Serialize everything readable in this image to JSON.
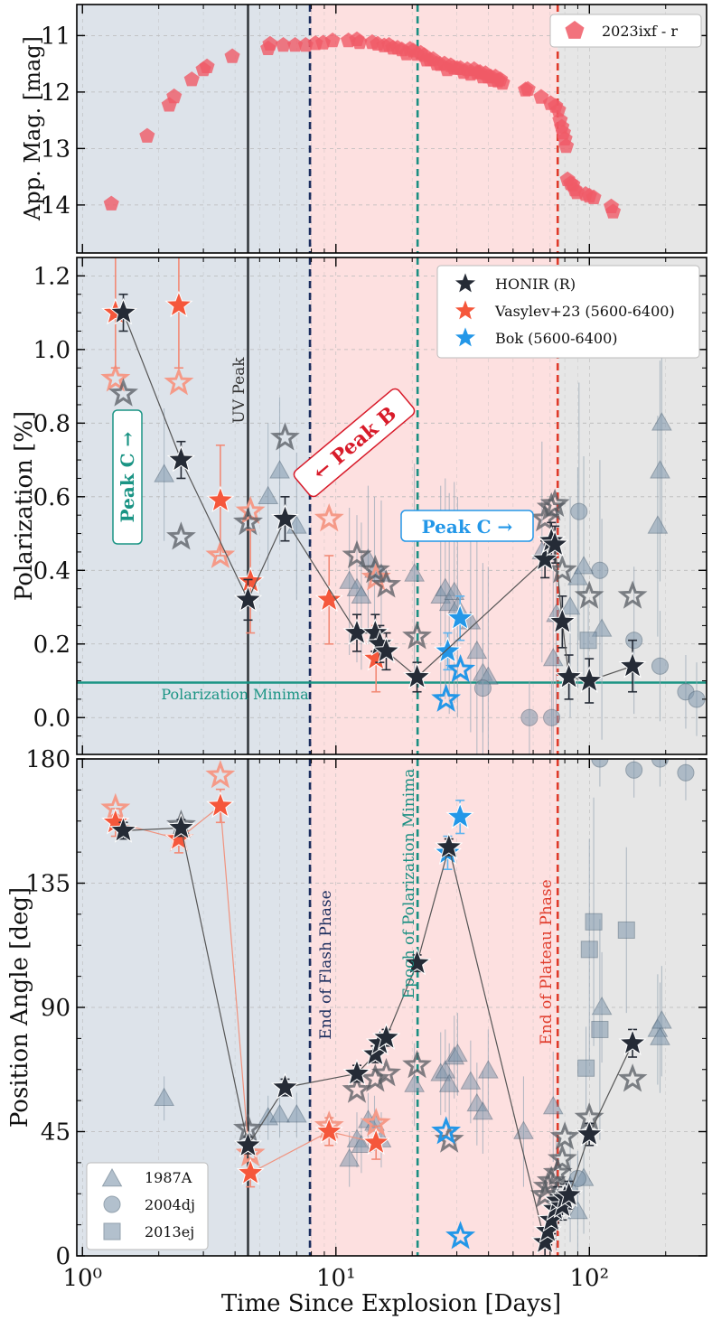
{
  "chart_data": {
    "type": "scatter",
    "x_axis": {
      "label": "Time Since Explosion [Days]",
      "scale": "log",
      "range": [
        0.95,
        290
      ],
      "major_ticks": [
        1,
        10,
        100
      ],
      "major_tick_labels": [
        "10⁰",
        "10¹",
        "10²"
      ]
    },
    "phases": [
      {
        "label": "",
        "from": 0.95,
        "to": 7.9,
        "color": "#dde3ea"
      },
      {
        "label": "",
        "from": 7.9,
        "to": 75,
        "color": "#fde0e0"
      },
      {
        "label": "",
        "from": 75,
        "to": 290,
        "color": "#e6e6e6"
      }
    ],
    "vertical_lines": [
      {
        "name": "uv-peak",
        "x": 4.5,
        "color": "#2e3338",
        "style": "solid",
        "label": "UV Peak"
      },
      {
        "name": "end-flash",
        "x": 7.9,
        "color": "#1b2d5e",
        "style": "dashed",
        "label": "End of Flash Phase"
      },
      {
        "name": "epoch-min",
        "x": 21,
        "color": "#1a8f82",
        "style": "dashed",
        "label": "Epoch of Polarization Minima"
      },
      {
        "name": "end-plateau",
        "x": 75,
        "color": "#e03a2a",
        "style": "dashed",
        "label": "End of Plateau Phase"
      }
    ],
    "colors": {
      "honir": "#252b36",
      "vasylev": "#f5573b",
      "bok": "#2397e8",
      "comparison": "#7f97ad",
      "photometry": "#f05a66",
      "minima": "#1a9484"
    },
    "panels": [
      {
        "name": "photometry",
        "ylabel": "App. Mag. [mag]",
        "ylim": [
          10.45,
          14.85
        ],
        "inverted": true,
        "yticks": [
          11,
          12,
          13,
          14
        ],
        "legend": [
          "2023ixf - r"
        ],
        "series": [
          {
            "name": "2023ixf - r",
            "marker": "pentagon",
            "x": [
              1.3,
              1.8,
              2.2,
              2.3,
              2.7,
              3.0,
              3.1,
              3.9,
              5.4,
              5.5,
              6.2,
              6.9,
              7.6,
              8.3,
              8.9,
              9.7,
              11.2,
              12.1,
              12.4,
              13.9,
              14.6,
              15.5,
              16.2,
              16.8,
              17.5,
              18.2,
              19.0,
              19.6,
              20.2,
              20.9,
              21.6,
              22.3,
              22.8,
              23.5,
              24.2,
              25.0,
              25.8,
              26.8,
              27.5,
              28.4,
              29.2,
              30.1,
              31.0,
              31.9,
              33.0,
              34.0,
              35.1,
              36.1,
              37.0,
              38.0,
              38.9,
              39.8,
              40.8,
              41.7,
              42.6,
              43.5,
              44.5,
              45.4,
              56.0,
              57.2,
              64.5,
              70.3,
              73.5,
              75.5,
              76.6,
              77.8,
              78.9,
              80.0,
              81.0,
              82.0,
              84.3,
              85.9,
              87.6,
              89.3,
              96.6,
              100.0,
              104.0,
              122.0,
              124.0
            ],
            "y": [
              13.98,
              12.78,
              12.23,
              12.08,
              11.78,
              11.6,
              11.55,
              11.37,
              11.23,
              11.15,
              11.17,
              11.17,
              11.17,
              11.14,
              11.13,
              11.09,
              11.09,
              11.07,
              11.12,
              11.12,
              11.15,
              11.18,
              11.17,
              11.22,
              11.22,
              11.25,
              11.32,
              11.24,
              11.27,
              11.33,
              11.31,
              11.35,
              11.43,
              11.43,
              11.42,
              11.5,
              11.51,
              11.5,
              11.6,
              11.53,
              11.57,
              11.58,
              11.58,
              11.65,
              11.6,
              11.68,
              11.6,
              11.66,
              11.65,
              11.73,
              11.67,
              11.73,
              11.73,
              11.79,
              11.73,
              11.8,
              11.78,
              11.84,
              11.96,
              11.95,
              12.09,
              12.2,
              12.25,
              12.32,
              12.5,
              12.62,
              12.72,
              12.83,
              12.96,
              13.55,
              13.62,
              13.64,
              13.73,
              13.78,
              13.81,
              13.84,
              13.87,
              14.03,
              14.12
            ]
          }
        ]
      },
      {
        "name": "polarization",
        "ylabel": "Polarization [%]",
        "ylim": [
          -0.1,
          1.25
        ],
        "yticks": [
          0.0,
          0.2,
          0.4,
          0.6,
          0.8,
          1.0,
          1.2
        ],
        "ytick_labels": [
          "0.0",
          "0.2",
          "0.4",
          "0.6",
          "0.8",
          "1.0",
          "1.2"
        ],
        "hline": {
          "y": 0.095,
          "label": "Polarization Minima"
        },
        "legend": [
          "HONIR (R)",
          "Vasylev+23 (5600-6400)",
          "Bok (5600-6400)"
        ],
        "annotations": [
          {
            "text": "← Peak B",
            "color": "#d81b2a"
          },
          {
            "text": "Peak C →",
            "color": "#1a9484"
          },
          {
            "text": "Peak C →",
            "color": "#2397e8"
          },
          {
            "text": "UV Peak",
            "color": "#333333"
          }
        ],
        "series": [
          {
            "name": "HONIR (R)",
            "style": "filled",
            "connected": true,
            "x": [
              1.45,
              2.45,
              4.5,
              6.3,
              12.1,
              14.3,
              14.9,
              15.8,
              20.9,
              66.8,
              70.8,
              73.1,
              78.2,
              83.0,
              99.9,
              148.0
            ],
            "y": [
              1.1,
              0.7,
              0.32,
              0.54,
              0.23,
              0.23,
              0.2,
              0.18,
              0.11,
              0.43,
              0.48,
              0.47,
              0.26,
              0.11,
              0.1,
              0.14
            ],
            "err": [
              0.05,
              0.05,
              0.055,
              0.06,
              0.05,
              0.05,
              0.05,
              0.05,
              0.04,
              0.05,
              0.05,
              0.05,
              0.07,
              0.06,
              0.06,
              0.07
            ]
          },
          {
            "name": "HONIR (R) unbinned",
            "style": "hollow",
            "x": [
              1.45,
              2.45,
              4.5,
              6.3,
              12.1,
              14.3,
              15.8,
              20.9,
              66.8,
              70.8,
              73.1,
              78.2,
              99.9,
              148.0
            ],
            "y": [
              0.88,
              0.49,
              0.53,
              0.76,
              0.44,
              0.4,
              0.36,
              0.22,
              0.54,
              0.57,
              0.58,
              0.4,
              0.33,
              0.33
            ]
          },
          {
            "name": "Vasylev+23 (5600-6400)",
            "style": "filled",
            "connected": false,
            "x": [
              1.35,
              2.4,
              3.5,
              4.6,
              9.4,
              14.4
            ],
            "y": [
              1.1,
              1.12,
              0.59,
              0.37,
              0.32,
              0.16
            ],
            "err": [
              0.15,
              0.17,
              0.15,
              0.14,
              0.12,
              0.09
            ]
          },
          {
            "name": "Vasylev+23 unbinned",
            "style": "hollow",
            "x": [
              1.35,
              2.4,
              3.5,
              4.6,
              9.4,
              14.4
            ],
            "y": [
              0.92,
              0.91,
              0.44,
              0.56,
              0.54,
              0.38
            ]
          },
          {
            "name": "Bok (5600-6400)",
            "style": "filled",
            "x": [
              27.6,
              30.9
            ],
            "y": [
              0.18,
              0.27
            ],
            "err": [
              0.05,
              0.06
            ]
          },
          {
            "name": "Bok unbinned",
            "style": "hollow",
            "x": [
              27.2,
              31.0
            ],
            "y": [
              0.05,
              0.13
            ]
          },
          {
            "name": "1987A",
            "marker": "triangle",
            "x": [
              2.1,
              5.4,
              6.0,
              7.0,
              11.3,
              12.1,
              12.6,
              13.4,
              14.2,
              15.1,
              20.4,
              25.9,
              27.0,
              28.0,
              29.3,
              30.2,
              34.0,
              36.0,
              38.0,
              39.9,
              65.0,
              72.0,
              74.0,
              84.0,
              90.0,
              95.0,
              112.0,
              186.0,
              190.0,
              193.0
            ],
            "y": [
              0.66,
              0.6,
              0.67,
              0.52,
              0.37,
              0.35,
              0.33,
              0.43,
              0.4,
              0.39,
              0.39,
              0.33,
              0.35,
              0.31,
              0.34,
              0.3,
              0.26,
              0.18,
              0.12,
              0.11,
              0.45,
              0.16,
              0.28,
              0.3,
              0.38,
              0.41,
              0.24,
              0.52,
              0.67,
              0.8
            ],
            "err": [
              0.18,
              0.2,
              0.2,
              0.2,
              0.2,
              0.2,
              0.2,
              0.2,
              0.2,
              0.2,
              0.3,
              0.3,
              0.3,
              0.3,
              0.3,
              0.3,
              0.3,
              0.3,
              0.3,
              0.3,
              0.3,
              0.3,
              0.3,
              0.3,
              0.3,
              0.3,
              0.3,
              0.3,
              0.3,
              0.3
            ]
          },
          {
            "name": "2004dj",
            "marker": "circle",
            "x": [
              38.0,
              58.0,
              71.0,
              91.0,
              110.0,
              150.0,
              190.0,
              240.0,
              265.0
            ],
            "y": [
              0.08,
              0.0,
              0.0,
              0.56,
              0.4,
              0.21,
              0.14,
              0.07,
              0.05
            ],
            "err": [
              0.12,
              0.1,
              0.1,
              0.35,
              0.3,
              0.2,
              0.15,
              0.1,
              0.1
            ]
          },
          {
            "name": "2013ej",
            "marker": "square",
            "x": [
              99.0
            ],
            "y": [
              0.21
            ],
            "err": [
              0.1
            ]
          }
        ]
      },
      {
        "name": "position_angle",
        "ylabel": "Position Angle [deg]",
        "ylim": [
          0,
          180
        ],
        "yticks": [
          0,
          45,
          90,
          135,
          180
        ],
        "ytick_labels": [
          "0",
          "45",
          "90",
          "135",
          "180"
        ],
        "legend": [
          "1987A",
          "2004dj",
          "2013ej"
        ],
        "series": [
          {
            "name": "HONIR (R)",
            "style": "filled",
            "connected": true,
            "x": [
              1.45,
              2.45,
              4.5,
              6.3,
              12.1,
              14.3,
              14.9,
              15.8,
              20.9,
              27.9,
              66.8,
              68.5,
              70.8,
              73.1,
              75.0,
              78.2,
              80.0,
              83.0,
              99.9,
              148.0
            ],
            "y": [
              154,
              155,
              40,
              61,
              66,
              73,
              77,
              79,
              106,
              148,
              5,
              9,
              13,
              17,
              20,
              18,
              21,
              22,
              44,
              77
            ],
            "err": [
              3,
              3,
              3,
              3,
              3,
              3,
              3,
              3,
              3,
              3,
              5,
              5,
              5,
              5,
              5,
              5,
              5,
              5,
              4,
              5
            ]
          },
          {
            "name": "HONIR (R) unbinned",
            "style": "hollow",
            "x": [
              2.45,
              4.5,
              12.1,
              14.3,
              15.8,
              20.9,
              28.0,
              66.8,
              68.5,
              70.8,
              75.0,
              78.2,
              80.0,
              99.9,
              148.0
            ],
            "y": [
              156,
              46,
              60,
              64,
              66,
              69,
              42,
              22,
              25,
              27,
              30,
              35,
              43,
              50,
              64
            ]
          },
          {
            "name": "Vasylev+23 (5600-6400)",
            "style": "filled",
            "connected": true,
            "x": [
              1.35,
              2.4,
              3.5,
              4.6,
              9.4,
              14.4
            ],
            "y": [
              157,
              151,
              163,
              30,
              45,
              41
            ],
            "err": [
              5,
              5,
              6,
              5,
              5,
              6
            ]
          },
          {
            "name": "Vasylev+23 unbinned",
            "style": "hollow",
            "x": [
              1.35,
              2.4,
              3.5,
              4.6,
              9.4,
              14.4
            ],
            "y": [
              162,
              151,
              174,
              37,
              47,
              48
            ]
          },
          {
            "name": "Bok (5600-6400)",
            "style": "filled",
            "x": [
              27.6,
              30.9
            ],
            "y": [
              146,
              159
            ],
            "err": [
              6,
              6
            ]
          },
          {
            "name": "Bok unbinned",
            "style": "hollow",
            "x": [
              27.2,
              31.0
            ],
            "y": [
              45,
              7
            ]
          },
          {
            "name": "1987A",
            "marker": "triangle",
            "x": [
              2.1,
              5.4,
              6.0,
              7.0,
              11.3,
              12.1,
              12.6,
              13.4,
              14.2,
              15.1,
              20.4,
              25.9,
              27.0,
              28.0,
              29.3,
              30.2,
              34.0,
              36.0,
              38.0,
              39.9,
              55.0,
              72.0,
              74.0,
              84.0,
              90.0,
              95.0,
              112.0,
              186.0,
              190.0,
              193.0
            ],
            "y": [
              57,
              50,
              51,
              51,
              35,
              42,
              40,
              49,
              48,
              42,
              62,
              66,
              67,
              62,
              72,
              73,
              63,
              55,
              52,
              67,
              45,
              54,
              22,
              25,
              16,
              28,
              90,
              82,
              79,
              85
            ],
            "err": [
              8,
              8,
              8,
              8,
              10,
              10,
              10,
              10,
              10,
              10,
              15,
              15,
              15,
              15,
              15,
              15,
              15,
              15,
              15,
              15,
              20,
              20,
              20,
              20,
              20,
              20,
              20,
              20,
              20,
              20
            ]
          },
          {
            "name": "2004dj",
            "marker": "circle",
            "x": [
              90.0,
              110.0,
              150.0,
              190.0,
              240.0
            ],
            "y": [
              28,
              180,
              176,
              180,
              175
            ],
            "err": [
              10,
              10,
              10,
              10,
              10
            ]
          },
          {
            "name": "2013ej",
            "marker": "square",
            "x": [
              97.0,
              100.0,
              104.0,
              110.0,
              140.0
            ],
            "y": [
              68,
              111,
              121,
              82,
              118
            ],
            "err": [
              15,
              40,
              45,
              40,
              30
            ]
          }
        ]
      }
    ]
  }
}
